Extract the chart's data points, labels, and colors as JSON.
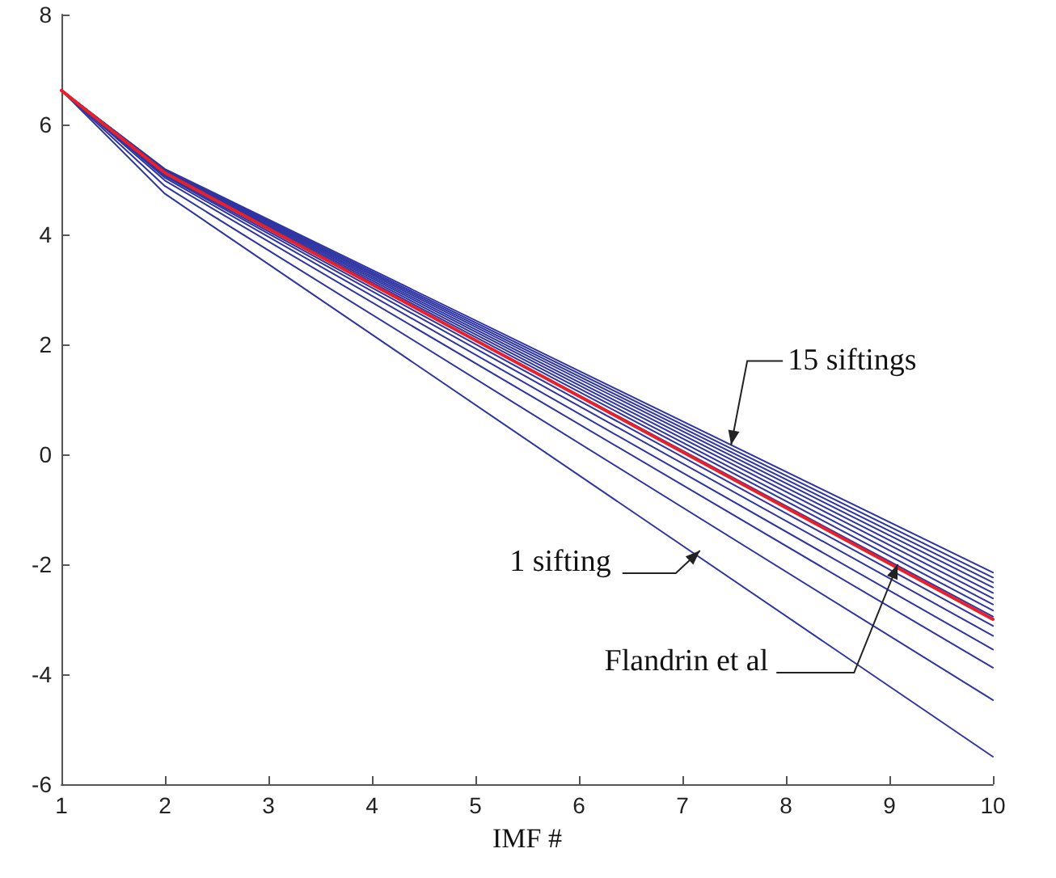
{
  "chart_data": {
    "type": "line",
    "xlabel": "IMF #",
    "x": [
      1,
      2,
      10
    ],
    "xlim": [
      1,
      10
    ],
    "xticks": [
      1,
      2,
      3,
      4,
      5,
      6,
      7,
      8,
      9,
      10
    ],
    "ylim": [
      -6,
      8
    ],
    "yticks": [
      -6,
      -4,
      -2,
      0,
      2,
      4,
      6,
      8
    ],
    "grid": false,
    "legend": false,
    "marker": "none",
    "line_style": "solid",
    "series": [
      {
        "color": "#2e35a3",
        "values": [
          6.62,
          4.74,
          -5.5
        ]
      },
      {
        "color": "#2e35a3",
        "values": [
          6.62,
          4.88,
          -4.47
        ]
      },
      {
        "color": "#2e35a3",
        "values": [
          6.62,
          4.98,
          -3.88
        ]
      },
      {
        "color": "#2e35a3",
        "values": [
          6.62,
          5.03,
          -3.55
        ]
      },
      {
        "color": "#2e35a3",
        "values": [
          6.62,
          5.06,
          -3.3
        ]
      },
      {
        "color": "#2e35a3",
        "values": [
          6.62,
          5.08,
          -3.12
        ]
      },
      {
        "color": "#2e35a3",
        "values": [
          6.62,
          5.1,
          -2.95
        ]
      },
      {
        "color": "#2e35a3",
        "values": [
          6.62,
          5.12,
          -2.84
        ]
      },
      {
        "color": "#2e35a3",
        "values": [
          6.62,
          5.13,
          -2.73
        ]
      },
      {
        "color": "#2e35a3",
        "values": [
          6.62,
          5.14,
          -2.62
        ]
      },
      {
        "color": "#2e35a3",
        "values": [
          6.62,
          5.15,
          -2.52
        ]
      },
      {
        "color": "#2e35a3",
        "values": [
          6.62,
          5.16,
          -2.42
        ]
      },
      {
        "color": "#2e35a3",
        "values": [
          6.62,
          5.17,
          -2.33
        ]
      },
      {
        "color": "#2e35a3",
        "values": [
          6.62,
          5.18,
          -2.24
        ]
      },
      {
        "color": "#2e35a3",
        "values": [
          6.62,
          5.19,
          -2.15
        ]
      },
      {
        "color": "#e8202a",
        "values": [
          6.62,
          5.12,
          -3.0
        ]
      }
    ],
    "annotations": [
      {
        "text": "15 siftings",
        "x": 7.47,
        "y": 0.17
      },
      {
        "text": "1 sifting",
        "x": 7.17,
        "y": -1.75
      },
      {
        "text": "Flandrin et al",
        "x": 9.08,
        "y": -2.0
      }
    ]
  }
}
